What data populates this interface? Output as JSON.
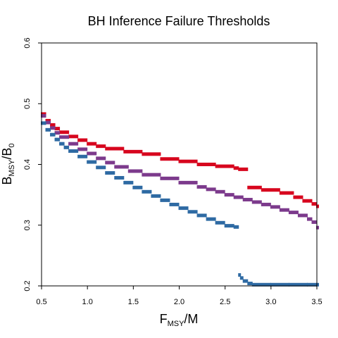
{
  "chart_data": {
    "type": "scatter",
    "title": "BH Inference Failure Thresholds",
    "xlabel": {
      "main": "F",
      "sub": "MSY",
      "suffix": "/M"
    },
    "ylabel": {
      "main": "B",
      "sub": "MSY",
      "slash": "/",
      "main2": "B",
      "sub2": "0"
    },
    "xlim": [
      0.5,
      3.5
    ],
    "ylim": [
      0.2,
      0.6
    ],
    "xticks": [
      0.5,
      1.0,
      1.5,
      2.0,
      2.5,
      3.0,
      3.5
    ],
    "xtick_labels": [
      "0.5",
      "1.0",
      "1.5",
      "2.0",
      "2.5",
      "3.0",
      "3.5"
    ],
    "yticks": [
      0.2,
      0.3,
      0.4,
      0.5,
      0.6
    ],
    "ytick_labels": [
      "0.2",
      "0.3",
      "0.4",
      "0.5",
      "0.6"
    ],
    "grid": false,
    "legend": "none",
    "series": [
      {
        "color": "#d7061e",
        "x": [
          0.5,
          0.55,
          0.6,
          0.65,
          0.7,
          0.8,
          0.9,
          1.0,
          1.1,
          1.2,
          1.4,
          1.6,
          1.8,
          2.0,
          2.2,
          2.4,
          2.6,
          2.65,
          2.75,
          2.9,
          3.1,
          3.25,
          3.35,
          3.45,
          3.5
        ],
        "y": [
          0.483,
          0.472,
          0.465,
          0.459,
          0.453,
          0.446,
          0.44,
          0.434,
          0.43,
          0.426,
          0.421,
          0.417,
          0.409,
          0.405,
          0.4,
          0.397,
          0.394,
          0.392,
          0.362,
          0.358,
          0.353,
          0.346,
          0.34,
          0.335,
          0.331
        ]
      },
      {
        "color": "#7c3a8c",
        "x": [
          0.5,
          0.55,
          0.6,
          0.65,
          0.7,
          0.8,
          0.9,
          1.0,
          1.1,
          1.2,
          1.3,
          1.45,
          1.6,
          1.8,
          2.0,
          2.2,
          2.3,
          2.4,
          2.5,
          2.6,
          2.7,
          2.8,
          2.9,
          3.0,
          3.1,
          3.2,
          3.3,
          3.4,
          3.45,
          3.5
        ],
        "y": [
          0.48,
          0.469,
          0.46,
          0.452,
          0.445,
          0.434,
          0.425,
          0.418,
          0.41,
          0.403,
          0.396,
          0.389,
          0.383,
          0.377,
          0.37,
          0.363,
          0.359,
          0.355,
          0.35,
          0.346,
          0.342,
          0.338,
          0.334,
          0.33,
          0.325,
          0.321,
          0.316,
          0.31,
          0.305,
          0.296
        ]
      },
      {
        "color": "#2e6aa3",
        "x": [
          0.5,
          0.55,
          0.6,
          0.65,
          0.7,
          0.75,
          0.8,
          0.9,
          1.0,
          1.1,
          1.2,
          1.3,
          1.4,
          1.5,
          1.6,
          1.7,
          1.8,
          1.9,
          2.0,
          2.1,
          2.2,
          2.3,
          2.4,
          2.5,
          2.6,
          2.65,
          2.67,
          2.7,
          2.75,
          2.8,
          3.0,
          3.2,
          3.4,
          3.5
        ],
        "y": [
          0.468,
          0.457,
          0.449,
          0.441,
          0.434,
          0.428,
          0.422,
          0.413,
          0.404,
          0.395,
          0.386,
          0.378,
          0.37,
          0.362,
          0.355,
          0.348,
          0.341,
          0.334,
          0.328,
          0.322,
          0.316,
          0.31,
          0.304,
          0.299,
          0.297,
          0.218,
          0.213,
          0.208,
          0.204,
          0.202,
          0.202,
          0.202,
          0.202,
          0.202
        ]
      }
    ]
  }
}
